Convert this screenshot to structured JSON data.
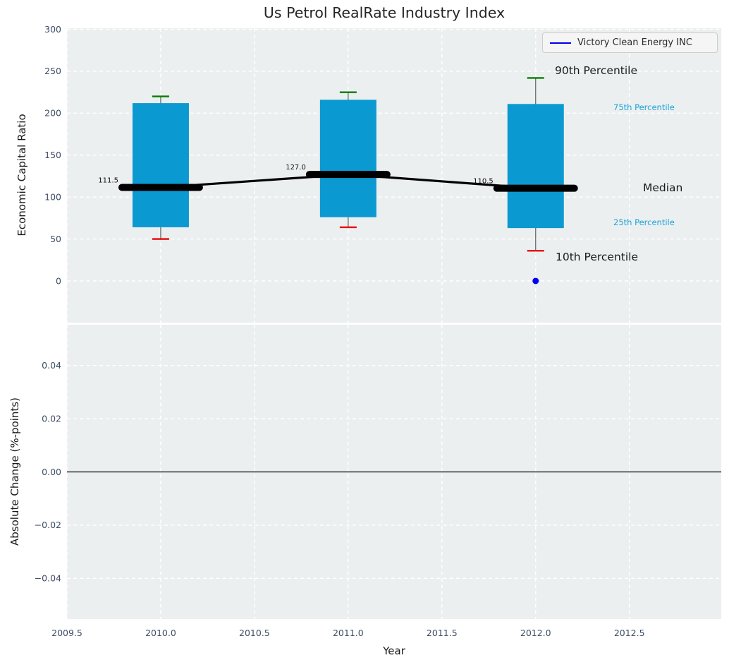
{
  "title": "Us Petrol RealRate Industry Index",
  "legend": {
    "label": "Victory Clean Energy INC"
  },
  "axis_labels": {
    "top_y": "Economic Capital Ratio",
    "bottom_y": "Absolute Change (%-points)",
    "x": "Year"
  },
  "annotations": {
    "p90": "90th Percentile",
    "p75": "75th Percentile",
    "median": "Median",
    "p25": "25th Percentile",
    "p10": "10th Percentile"
  },
  "colors": {
    "box_fill": "#0b99d1",
    "whisker": "#5f5f5f",
    "cap_top": "#008000",
    "cap_bottom": "#e80000",
    "median_line": "#000000",
    "company_point": "#0000ee",
    "accent_text": "#1ba3da",
    "panel_bg": "#eceff0",
    "gridline": "#ffffff",
    "tick_label": "#3d4d63",
    "zero_line": "#000000"
  },
  "chart_data": {
    "type": "boxplot",
    "title": "Us Petrol RealRate Industry Index",
    "legend": [
      "Victory Clean Energy INC"
    ],
    "x_axis": {
      "label": "Year",
      "lim": [
        2009.5,
        2012.99
      ],
      "ticks": [
        {
          "v": 2009.5,
          "label": "2009.5"
        },
        {
          "v": 2010.0,
          "label": "2010.0"
        },
        {
          "v": 2010.5,
          "label": "2010.5"
        },
        {
          "v": 2011.0,
          "label": "2011.0"
        },
        {
          "v": 2011.5,
          "label": "2011.5"
        },
        {
          "v": 2012.0,
          "label": "2012.0"
        },
        {
          "v": 2012.5,
          "label": "2012.5"
        }
      ]
    },
    "top_panel": {
      "ylabel": "Economic Capital Ratio",
      "lim": [
        -49.7,
        301.3
      ],
      "ticks": [
        {
          "v": 0,
          "label": "0"
        },
        {
          "v": 50,
          "label": "50"
        },
        {
          "v": 100,
          "label": "100"
        },
        {
          "v": 150,
          "label": "150"
        },
        {
          "v": 200,
          "label": "200"
        },
        {
          "v": 250,
          "label": "250"
        },
        {
          "v": 300,
          "label": "300"
        }
      ],
      "boxes": [
        {
          "x": 2010,
          "p10": 50,
          "p25": 64,
          "median": 111.5,
          "p75": 212,
          "p90": 220,
          "median_label": "111.5"
        },
        {
          "x": 2011,
          "p10": 64,
          "p25": 76,
          "median": 127.0,
          "p75": 216,
          "p90": 225,
          "median_label": "127.0"
        },
        {
          "x": 2012,
          "p10": 36,
          "p25": 63,
          "median": 110.5,
          "p75": 211,
          "p90": 242,
          "median_label": "110.5"
        }
      ],
      "median_series": {
        "x": [
          2010,
          2011,
          2012
        ],
        "y": [
          111.5,
          127.0,
          110.5
        ]
      },
      "company_point": {
        "series": "Victory Clean Energy INC",
        "x": 2012,
        "y": 0
      }
    },
    "bottom_panel": {
      "ylabel": "Absolute Change (%-points)",
      "lim": [
        -0.0553,
        0.0553
      ],
      "ticks": [
        {
          "v": 0.04,
          "label": "0.04"
        },
        {
          "v": 0.02,
          "label": "0.02"
        },
        {
          "v": 0.0,
          "label": "0.00"
        },
        {
          "v": -0.02,
          "label": "−0.02"
        },
        {
          "v": -0.04,
          "label": "−0.04"
        }
      ],
      "zero_line": 0.0,
      "series": []
    },
    "grid": "white-dashed",
    "legend_position": "upper right"
  }
}
